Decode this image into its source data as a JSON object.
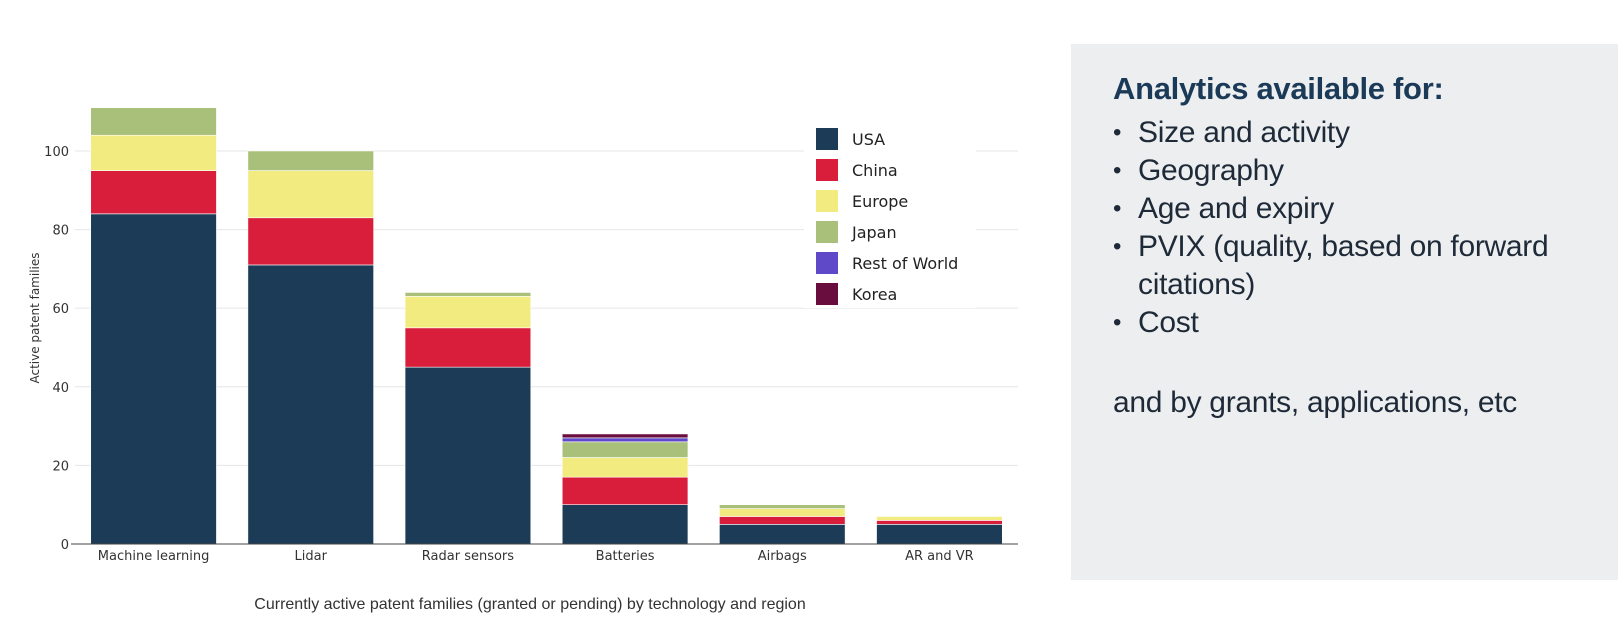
{
  "chart_data": {
    "type": "bar",
    "stacked": true,
    "categories": [
      "Machine learning",
      "Lidar",
      "Radar sensors",
      "Batteries",
      "Airbags",
      "AR and VR"
    ],
    "series": [
      {
        "name": "USA",
        "color": "#1b3b56",
        "values": [
          84,
          71,
          45,
          10,
          5,
          5
        ]
      },
      {
        "name": "China",
        "color": "#d91e3c",
        "values": [
          11,
          12,
          10,
          7,
          2,
          1
        ]
      },
      {
        "name": "Europe",
        "color": "#f2ec80",
        "values": [
          9,
          12,
          8,
          5,
          2,
          1
        ]
      },
      {
        "name": "Japan",
        "color": "#a8c07a",
        "values": [
          7,
          5,
          1,
          4,
          1,
          0
        ]
      },
      {
        "name": "Rest of World",
        "color": "#6049c9",
        "values": [
          0,
          0,
          0,
          1,
          0,
          0
        ]
      },
      {
        "name": "Korea",
        "color": "#690c3e",
        "values": [
          0,
          0,
          0,
          1,
          0,
          0
        ]
      }
    ],
    "title": "",
    "xlabel": "",
    "ylabel": "Active patent families",
    "ylim": [
      0,
      115
    ],
    "yticks": [
      0,
      20,
      40,
      60,
      80,
      100
    ],
    "grid": true,
    "legend_position": "top-right",
    "caption": "Currently active patent families (granted or pending) by technology and region"
  },
  "panel": {
    "title": "Analytics available for:",
    "items": [
      "Size and activity",
      "Geography",
      "Age and expiry",
      "PVIX (quality, based on forward citations)",
      "Cost"
    ],
    "footer": "and by grants, applications, etc"
  }
}
